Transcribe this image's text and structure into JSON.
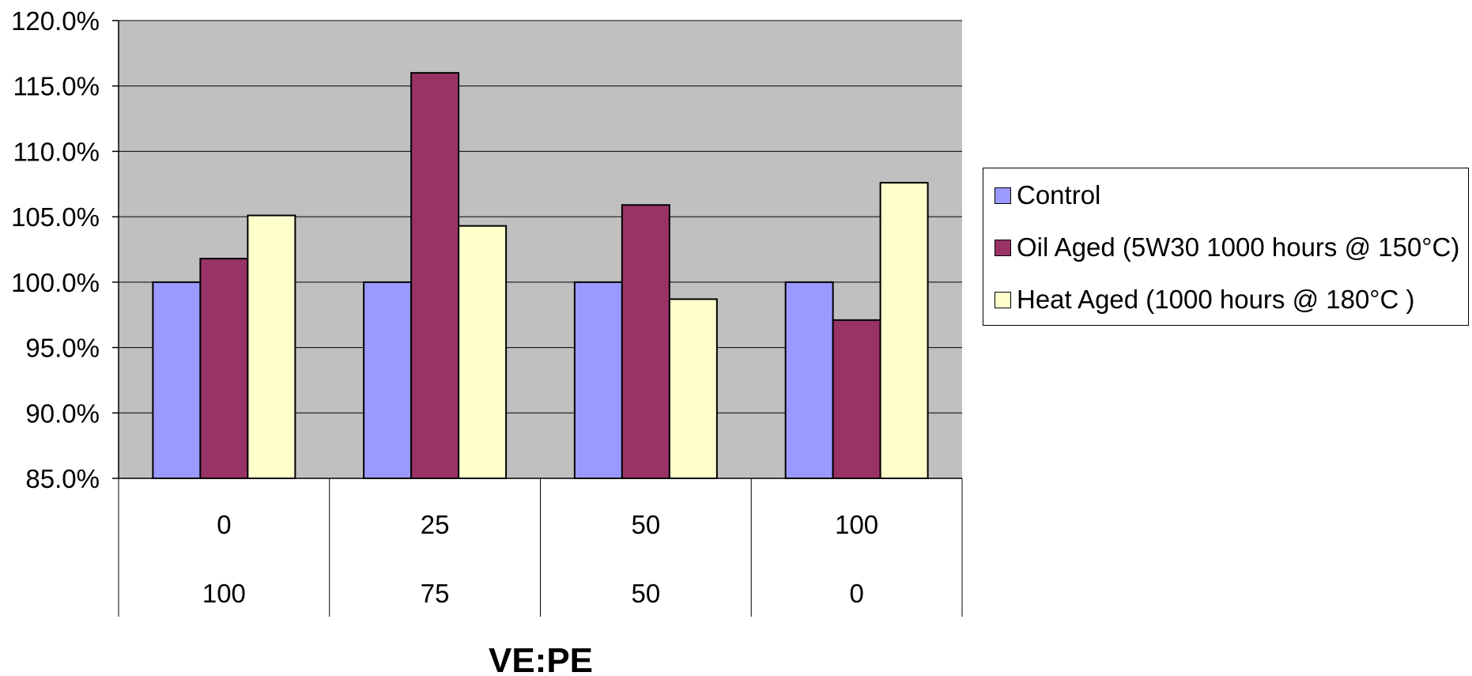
{
  "chart_data": {
    "type": "bar",
    "title": "",
    "xlabel": "VE:PE",
    "ylabel": "",
    "ylim": [
      0.85,
      1.2
    ],
    "yticks": [
      0.85,
      0.9,
      0.95,
      1.0,
      1.05,
      1.1,
      1.15,
      1.2
    ],
    "ytick_labels": [
      "85.0%",
      "90.0%",
      "95.0%",
      "100.0%",
      "105.0%",
      "110.0%",
      "115.0%",
      "120.0%"
    ],
    "categories": [
      {
        "ve": "0",
        "pe": "100"
      },
      {
        "ve": "25",
        "pe": "75"
      },
      {
        "ve": "50",
        "pe": "50"
      },
      {
        "ve": "100",
        "pe": "0"
      }
    ],
    "series": [
      {
        "name": "Control",
        "color": "#9999FF",
        "values": [
          1.0,
          1.0,
          1.0,
          1.0
        ]
      },
      {
        "name": "Oil Aged (5W30 1000 hours @ 150°C)",
        "color": "#993366",
        "values": [
          1.018,
          1.16,
          1.059,
          0.971
        ]
      },
      {
        "name": "Heat Aged (1000 hours @ 180°C )",
        "color": "#FFFFCC",
        "values": [
          1.051,
          1.043,
          0.987,
          1.076
        ]
      }
    ],
    "grid": true,
    "plot_background": "#C0C0C0",
    "legend_position": "right"
  }
}
